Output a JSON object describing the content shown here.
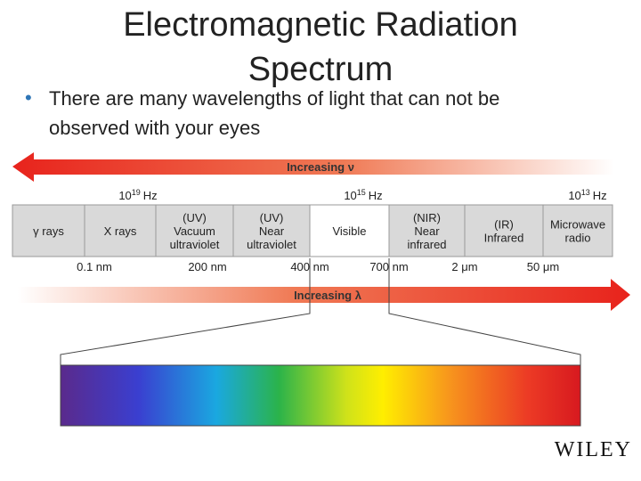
{
  "title": {
    "lines": [
      "Electromagnetic Radiation",
      "Spectrum"
    ]
  },
  "bullet": {
    "lines": [
      "There are many wavelengths of light that can not be",
      "observed with your eyes"
    ]
  },
  "top_arrow": {
    "label": "Increasing ν"
  },
  "frequencies": [
    {
      "base": "10",
      "exp": "19",
      "unit": "Hz"
    },
    {
      "base": "10",
      "exp": "15",
      "unit": "Hz"
    },
    {
      "base": "10",
      "exp": "13",
      "unit": "Hz"
    }
  ],
  "bands": [
    {
      "lines": [
        "γ rays"
      ]
    },
    {
      "lines": [
        "X rays"
      ]
    },
    {
      "lines": [
        "(UV)",
        "Vacuum",
        "ultraviolet"
      ]
    },
    {
      "lines": [
        "(UV)",
        "Near",
        "ultraviolet"
      ]
    },
    {
      "lines": [
        "Visible"
      ]
    },
    {
      "lines": [
        "(NIR)",
        "Near",
        "infrared"
      ]
    },
    {
      "lines": [
        "(IR)",
        "Infrared"
      ]
    },
    {
      "lines": [
        "Microwave",
        "radio"
      ]
    }
  ],
  "wavelengths": [
    "0.1 nm",
    "200 nm",
    "400 nm",
    "700 nm",
    "2  μm",
    "50  μm"
  ],
  "bottom_arrow": {
    "label": "Increasing λ"
  },
  "logo": "WILEY"
}
